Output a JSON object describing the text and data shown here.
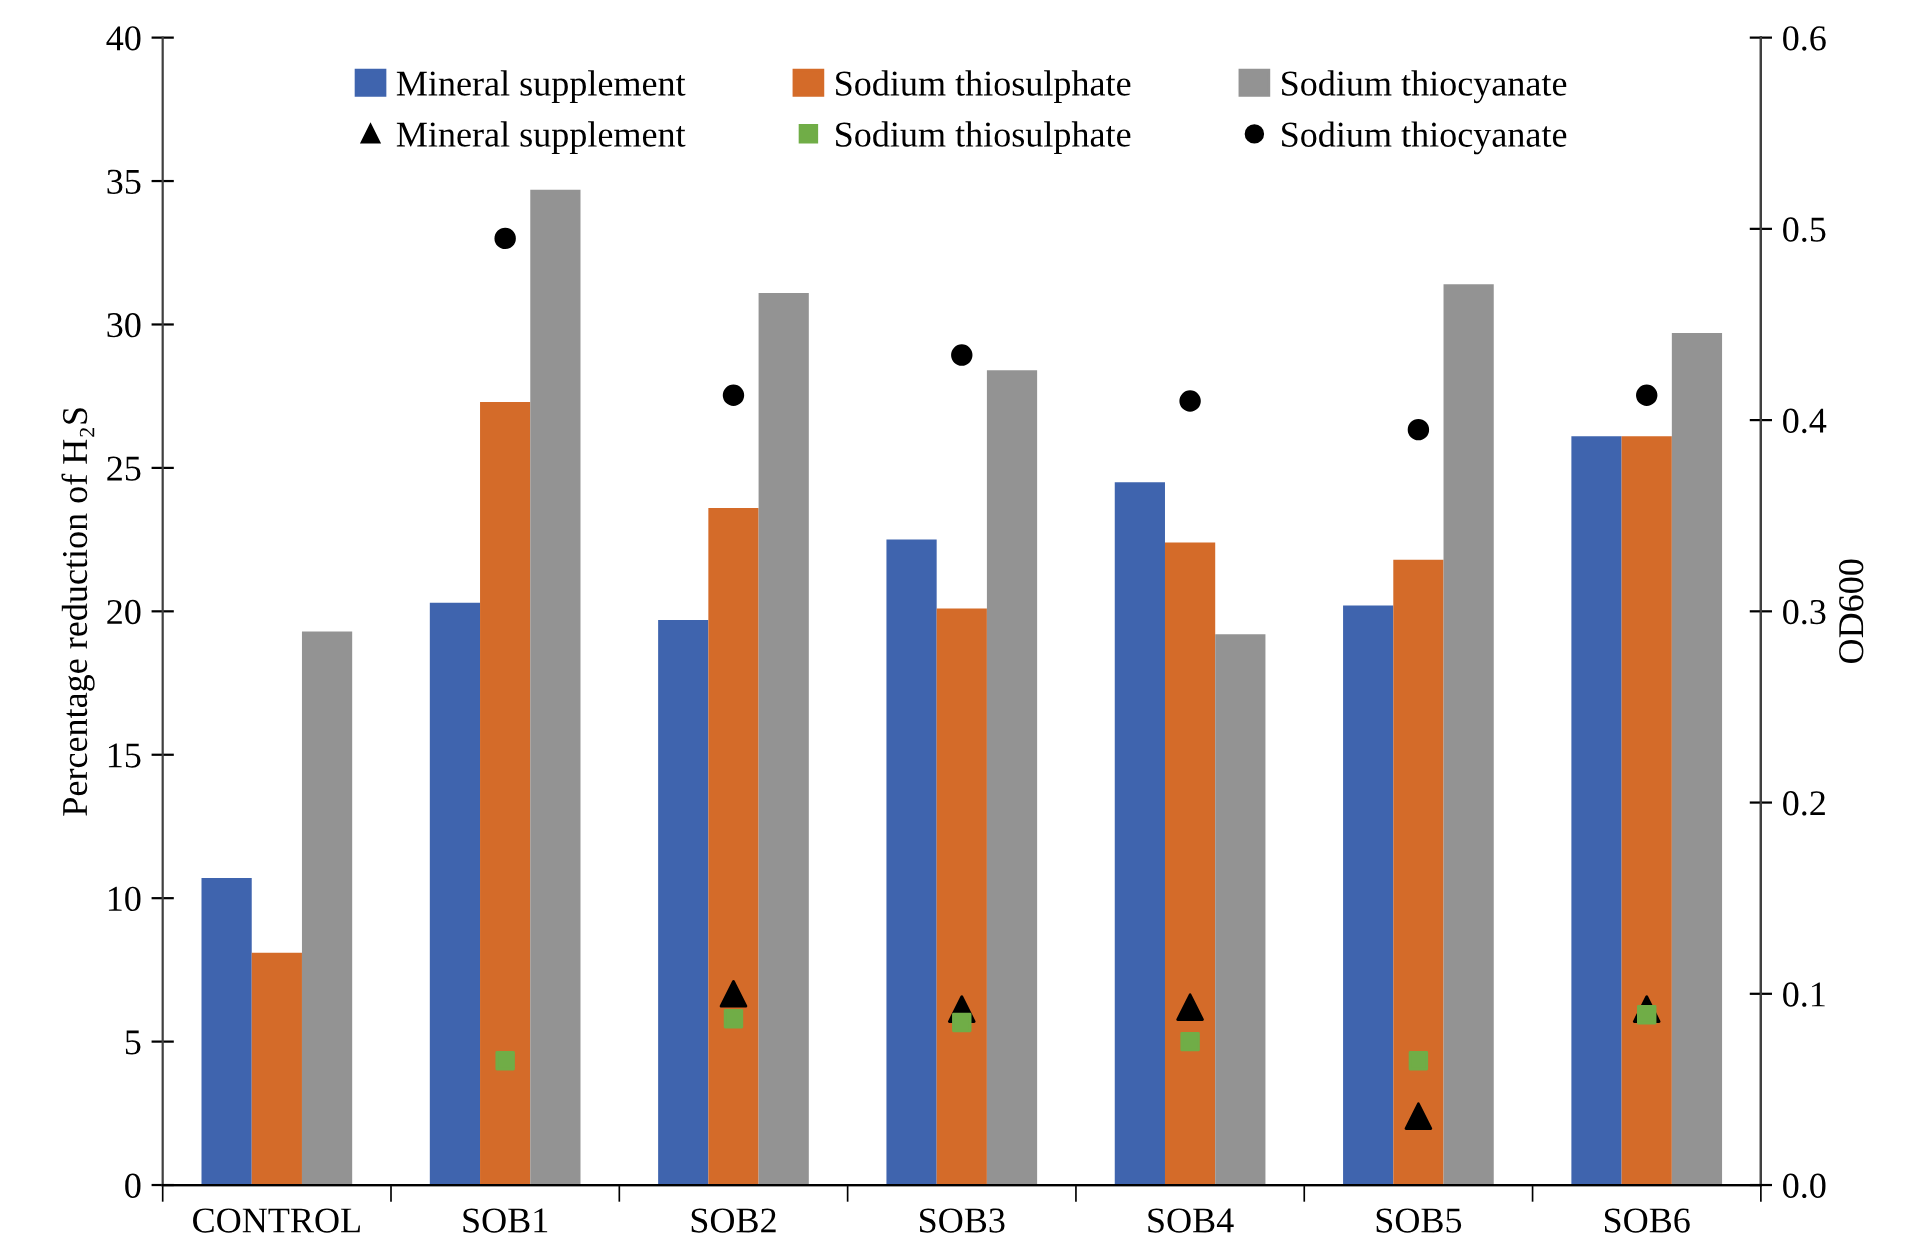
{
  "chart_data": {
    "type": "bar",
    "ylabel": "Percentage reduction of H₂S",
    "y2label": "OD600",
    "categories": [
      "CONTROL",
      "SOB1",
      "SOB2",
      "SOB3",
      "SOB4",
      "SOB5",
      "SOB6"
    ],
    "series": [
      {
        "name": "Mineral supplement",
        "color": "#3f64ae",
        "values": [
          10.7,
          20.3,
          19.7,
          22.5,
          24.5,
          20.2,
          26.1
        ]
      },
      {
        "name": "Sodium thiosulphate",
        "color": "#d46b29",
        "values": [
          8.1,
          27.3,
          23.6,
          20.1,
          22.4,
          21.8,
          26.1
        ]
      },
      {
        "name": "Sodium thiocyanate",
        "color": "#939393",
        "values": [
          19.3,
          34.7,
          31.1,
          28.4,
          19.2,
          31.4,
          29.7
        ]
      },
      {
        "name": "Mineral supplement",
        "type": "scatter",
        "axis": "y2",
        "marker": "triangle",
        "color": "#000000",
        "values": [
          null,
          null,
          0.1,
          0.092,
          0.093,
          0.036,
          0.092
        ]
      },
      {
        "name": "Sodium thiosulphate",
        "type": "scatter",
        "axis": "y2",
        "marker": "square",
        "color": "#70ad47",
        "values": [
          null,
          0.065,
          0.087,
          0.085,
          0.075,
          0.065,
          0.089
        ]
      },
      {
        "name": "Sodium thiocyanate",
        "type": "scatter",
        "axis": "y2",
        "marker": "circle",
        "color": "#000000",
        "values": [
          null,
          0.495,
          0.413,
          0.434,
          0.41,
          0.395,
          0.413
        ]
      }
    ],
    "ylim": [
      0,
      40
    ],
    "yticks": [
      0,
      5,
      10,
      15,
      20,
      25,
      30,
      35,
      40
    ],
    "y2lim": [
      0,
      0.6
    ],
    "y2ticks": [
      {
        "value": 0,
        "label": "0.0"
      },
      0.1,
      0.2,
      0.3,
      0.4,
      0.5,
      0.6
    ],
    "legend": "top",
    "grid": false
  }
}
